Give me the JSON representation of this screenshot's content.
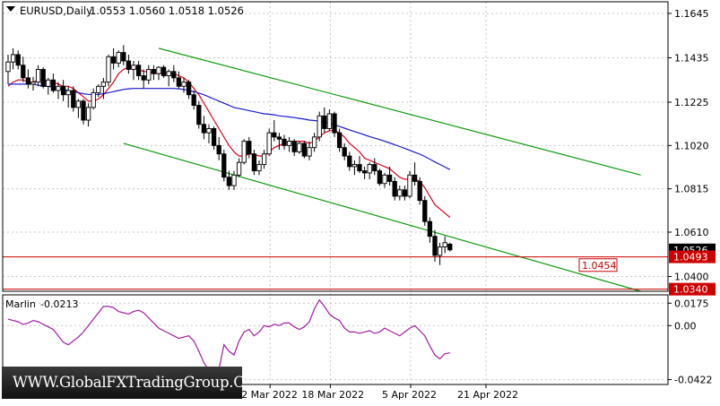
{
  "header": {
    "symbol": "EURUSD,Daily",
    "ohlc": "1.0553 1.0560 1.0518 1.0526"
  },
  "indicator": {
    "name": "Marlin",
    "value": "-0.0213"
  },
  "watermark": "WWW.GlobalFXTradingGroup.Com",
  "colors": {
    "background": "#ffffff",
    "grid": "#c8c8c8",
    "candle": "#000000",
    "ma_fast": "#e0001b",
    "ma_slow": "#1a1acc",
    "channel": "#119911",
    "level": "#cc0000",
    "oscillator": "#a01ea0"
  },
  "chart_data": [
    {
      "type": "candlestick",
      "title": "EURUSD,Daily",
      "ylim": [
        1.033,
        1.17
      ],
      "y_ticks": [
        "1.1645",
        "1.1435",
        "1.1225",
        "1.1020",
        "1.0815",
        "1.0610",
        "1.0400"
      ],
      "x_ticks": [
        "2 Mar 2022",
        "18 Mar 2022",
        "5 Apr 2022",
        "21 Apr 2022"
      ],
      "price_tags": [
        {
          "label": "1.0526",
          "value": 1.0526,
          "style": "current"
        },
        {
          "label": "1.0493",
          "value": 1.0493,
          "style": "level"
        },
        {
          "label": "1.0340",
          "value": 1.034,
          "style": "level"
        }
      ],
      "annotations": [
        {
          "label": "1.0454",
          "value": 1.0454
        }
      ],
      "horizontal_levels": [
        1.0493,
        1.034
      ],
      "channel": {
        "upper": [
          {
            "bar": 30,
            "price": 1.148
          },
          {
            "bar": 126,
            "price": 1.088
          }
        ],
        "lower": [
          {
            "bar": 23,
            "price": 1.103
          },
          {
            "bar": 126,
            "price": 1.033
          }
        ]
      },
      "candles": [
        [
          1.137,
          1.145,
          1.131,
          1.1415
        ],
        [
          1.1415,
          1.148,
          1.138,
          1.145
        ],
        [
          1.145,
          1.147,
          1.138,
          1.14
        ],
        [
          1.14,
          1.144,
          1.132,
          1.134
        ],
        [
          1.134,
          1.138,
          1.129,
          1.131
        ],
        [
          1.131,
          1.1345,
          1.128,
          1.132
        ],
        [
          1.132,
          1.14,
          1.13,
          1.138
        ],
        [
          1.138,
          1.139,
          1.129,
          1.13
        ],
        [
          1.13,
          1.134,
          1.126,
          1.133
        ],
        [
          1.133,
          1.136,
          1.127,
          1.128
        ],
        [
          1.128,
          1.132,
          1.124,
          1.13
        ],
        [
          1.13,
          1.133,
          1.123,
          1.126
        ],
        [
          1.126,
          1.13,
          1.12,
          1.128
        ],
        [
          1.128,
          1.13,
          1.118,
          1.12
        ],
        [
          1.12,
          1.124,
          1.115,
          1.123
        ],
        [
          1.123,
          1.124,
          1.112,
          1.114
        ],
        [
          1.114,
          1.122,
          1.111,
          1.12
        ],
        [
          1.12,
          1.129,
          1.119,
          1.127
        ],
        [
          1.127,
          1.131,
          1.125,
          1.13
        ],
        [
          1.13,
          1.134,
          1.124,
          1.132
        ],
        [
          1.132,
          1.145,
          1.13,
          1.144
        ],
        [
          1.144,
          1.148,
          1.138,
          1.141
        ],
        [
          1.141,
          1.147,
          1.139,
          1.146
        ],
        [
          1.146,
          1.1495,
          1.14,
          1.142
        ],
        [
          1.142,
          1.145,
          1.136,
          1.138
        ],
        [
          1.138,
          1.142,
          1.133,
          1.14
        ],
        [
          1.14,
          1.142,
          1.133,
          1.135
        ],
        [
          1.135,
          1.138,
          1.129,
          1.133
        ],
        [
          1.133,
          1.14,
          1.131,
          1.138
        ],
        [
          1.138,
          1.14,
          1.133,
          1.136
        ],
        [
          1.136,
          1.1395,
          1.133,
          1.139
        ],
        [
          1.139,
          1.14,
          1.134,
          1.135
        ],
        [
          1.135,
          1.138,
          1.13,
          1.137
        ],
        [
          1.137,
          1.14,
          1.132,
          1.134
        ],
        [
          1.134,
          1.137,
          1.129,
          1.13
        ],
        [
          1.13,
          1.134,
          1.127,
          1.132
        ],
        [
          1.132,
          1.133,
          1.124,
          1.126
        ],
        [
          1.126,
          1.128,
          1.119,
          1.121
        ],
        [
          1.121,
          1.123,
          1.11,
          1.112
        ],
        [
          1.112,
          1.116,
          1.105,
          1.108
        ],
        [
          1.108,
          1.112,
          1.103,
          1.11
        ],
        [
          1.11,
          1.111,
          1.1,
          1.102
        ],
        [
          1.102,
          1.106,
          1.095,
          1.098
        ],
        [
          1.098,
          1.1,
          1.085,
          1.087
        ],
        [
          1.087,
          1.09,
          1.081,
          1.083
        ],
        [
          1.083,
          1.09,
          1.081,
          1.088
        ],
        [
          1.088,
          1.096,
          1.087,
          1.094
        ],
        [
          1.094,
          1.105,
          1.093,
          1.104
        ],
        [
          1.104,
          1.106,
          1.096,
          1.098
        ],
        [
          1.098,
          1.1,
          1.088,
          1.09
        ],
        [
          1.09,
          1.095,
          1.088,
          1.093
        ],
        [
          1.093,
          1.1,
          1.091,
          1.098
        ],
        [
          1.098,
          1.11,
          1.097,
          1.108
        ],
        [
          1.108,
          1.114,
          1.104,
          1.106
        ],
        [
          1.106,
          1.108,
          1.1,
          1.105
        ],
        [
          1.105,
          1.107,
          1.1,
          1.102
        ],
        [
          1.102,
          1.106,
          1.099,
          1.104
        ],
        [
          1.104,
          1.105,
          1.097,
          1.099
        ],
        [
          1.099,
          1.104,
          1.098,
          1.103
        ],
        [
          1.103,
          1.104,
          1.096,
          1.097
        ],
        [
          1.097,
          1.104,
          1.095,
          1.101
        ],
        [
          1.101,
          1.108,
          1.099,
          1.106
        ],
        [
          1.106,
          1.118,
          1.104,
          1.116
        ],
        [
          1.116,
          1.12,
          1.108,
          1.11
        ],
        [
          1.11,
          1.119,
          1.109,
          1.117
        ],
        [
          1.117,
          1.118,
          1.106,
          1.108
        ],
        [
          1.108,
          1.11,
          1.099,
          1.101
        ],
        [
          1.101,
          1.103,
          1.095,
          1.097
        ],
        [
          1.097,
          1.099,
          1.09,
          1.092
        ],
        [
          1.092,
          1.095,
          1.088,
          1.093
        ],
        [
          1.093,
          1.097,
          1.089,
          1.09
        ],
        [
          1.09,
          1.092,
          1.086,
          1.089
        ],
        [
          1.089,
          1.094,
          1.086,
          1.093
        ],
        [
          1.093,
          1.096,
          1.088,
          1.09
        ],
        [
          1.09,
          1.091,
          1.083,
          1.084
        ],
        [
          1.084,
          1.089,
          1.082,
          1.088
        ],
        [
          1.088,
          1.092,
          1.083,
          1.085
        ],
        [
          1.085,
          1.087,
          1.076,
          1.078
        ],
        [
          1.078,
          1.083,
          1.076,
          1.081
        ],
        [
          1.081,
          1.083,
          1.076,
          1.078
        ],
        [
          1.078,
          1.09,
          1.077,
          1.088
        ],
        [
          1.088,
          1.094,
          1.083,
          1.085
        ],
        [
          1.085,
          1.087,
          1.074,
          1.076
        ],
        [
          1.076,
          1.078,
          1.064,
          1.066
        ],
        [
          1.066,
          1.068,
          1.056,
          1.059
        ],
        [
          1.059,
          1.062,
          1.047,
          1.05
        ],
        [
          1.05,
          1.056,
          1.0454,
          1.054
        ],
        [
          1.054,
          1.059,
          1.051,
          1.056
        ],
        [
          1.0553,
          1.056,
          1.0518,
          1.0526
        ]
      ],
      "series": [
        {
          "type": "line",
          "color": "#e0001b",
          "values": [
            1.13,
            1.132,
            1.133,
            1.133,
            1.132,
            1.132,
            1.133,
            1.133,
            1.132,
            1.132,
            1.131,
            1.13,
            1.13,
            1.129,
            1.127,
            1.125,
            1.123,
            1.123,
            1.124,
            1.126,
            1.129,
            1.132,
            1.136,
            1.138,
            1.139,
            1.139,
            1.138,
            1.137,
            1.137,
            1.136,
            1.136,
            1.136,
            1.136,
            1.136,
            1.135,
            1.134,
            1.132,
            1.129,
            1.126,
            1.122,
            1.118,
            1.114,
            1.11,
            1.106,
            1.102,
            1.099,
            1.097,
            1.097,
            1.098,
            1.098,
            1.097,
            1.097,
            1.099,
            1.101,
            1.102,
            1.103,
            1.104,
            1.104,
            1.104,
            1.104,
            1.103,
            1.104,
            1.106,
            1.108,
            1.109,
            1.109,
            1.108,
            1.106,
            1.103,
            1.101,
            1.099,
            1.096,
            1.095,
            1.094,
            1.093,
            1.092,
            1.091,
            1.089,
            1.087,
            1.086,
            1.086,
            1.086,
            1.085,
            1.082,
            1.078,
            1.074,
            1.072,
            1.07,
            1.068
          ]
        },
        {
          "type": "line",
          "color": "#1a1acc",
          "values": [
            1.131,
            1.131,
            1.131,
            1.131,
            1.131,
            1.131,
            1.1305,
            1.13,
            1.13,
            1.1295,
            1.129,
            1.1285,
            1.128,
            1.1275,
            1.127,
            1.1265,
            1.1262,
            1.126,
            1.1262,
            1.1265,
            1.127,
            1.1275,
            1.128,
            1.1285,
            1.1288,
            1.129,
            1.129,
            1.129,
            1.129,
            1.129,
            1.129,
            1.129,
            1.129,
            1.129,
            1.1288,
            1.1285,
            1.128,
            1.1275,
            1.1268,
            1.126,
            1.125,
            1.124,
            1.123,
            1.122,
            1.121,
            1.12,
            1.1195,
            1.119,
            1.1185,
            1.118,
            1.1175,
            1.117,
            1.1168,
            1.1165,
            1.116,
            1.1158,
            1.1155,
            1.1152,
            1.1148,
            1.1145,
            1.114,
            1.1138,
            1.1135,
            1.113,
            1.1125,
            1.1118,
            1.111,
            1.1102,
            1.1094,
            1.1086,
            1.1078,
            1.107,
            1.1062,
            1.1055,
            1.1048,
            1.104,
            1.1032,
            1.1024,
            1.1015,
            1.1006,
            1.0997,
            1.0988,
            1.0979,
            1.0968,
            1.0955,
            1.0942,
            1.093,
            1.0918,
            1.0906
          ]
        }
      ]
    },
    {
      "type": "line",
      "title": "Marlin -0.0213",
      "ylim": [
        -0.046,
        0.024
      ],
      "y_ticks": [
        "0.0175",
        "0.00",
        "-0.0422"
      ],
      "series": [
        {
          "type": "line",
          "color": "#a01ea0",
          "values": [
            0.005,
            0.004,
            0.003,
            0.001,
            0.002,
            0.004,
            0.003,
            0.001,
            -0.001,
            -0.003,
            -0.008,
            -0.013,
            -0.015,
            -0.012,
            -0.009,
            -0.005,
            0.0,
            0.005,
            0.01,
            0.015,
            0.015,
            0.014,
            0.011,
            0.01,
            0.009,
            0.011,
            0.012,
            0.01,
            0.006,
            0.002,
            -0.002,
            -0.004,
            -0.006,
            -0.008,
            -0.01,
            -0.009,
            -0.008,
            -0.012,
            -0.02,
            -0.029,
            -0.035,
            -0.038,
            -0.034,
            -0.015,
            -0.02,
            -0.023,
            -0.012,
            -0.005,
            -0.003,
            -0.008,
            -0.005,
            0.0,
            -0.001,
            0.001,
            0.0,
            0.002,
            0.002,
            -0.001,
            -0.003,
            -0.001,
            0.003,
            0.013,
            0.02,
            0.015,
            0.009,
            0.006,
            0.004,
            -0.002,
            -0.005,
            -0.005,
            -0.006,
            -0.005,
            -0.004,
            -0.006,
            -0.005,
            -0.002,
            -0.004,
            -0.006,
            -0.008,
            -0.005,
            -0.002,
            0.0,
            -0.004,
            -0.008,
            -0.016,
            -0.023,
            -0.026,
            -0.022,
            -0.0213
          ]
        }
      ]
    }
  ]
}
